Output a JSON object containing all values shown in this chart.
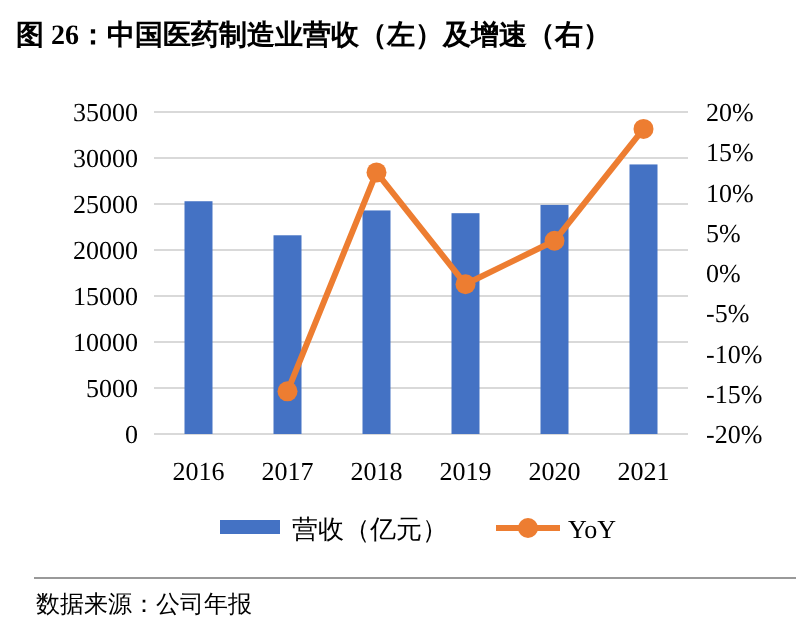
{
  "chart_data": {
    "type": "bar",
    "title": "图 26：中国医药制造业营收（左）及增速（右）",
    "categories": [
      "2016",
      "2017",
      "2018",
      "2019",
      "2020",
      "2021"
    ],
    "series": [
      {
        "name": "营收（亿元）",
        "color": "#4472c4",
        "values": [
          25300,
          21600,
          24300,
          24000,
          24900,
          29300
        ]
      },
      {
        "name": "YoY",
        "type": "line",
        "axis": "y2",
        "color": "#ed7d31",
        "marker": "circle",
        "values": [
          null,
          -14.7,
          12.5,
          -1.4,
          4.0,
          17.9
        ]
      }
    ],
    "ylim": [
      0,
      35000
    ],
    "yticks": [
      0,
      5000,
      10000,
      15000,
      20000,
      25000,
      30000,
      35000
    ],
    "y2lim": [
      -20,
      20
    ],
    "y2ticks": [
      {
        "value": -20,
        "label": "-20%"
      },
      {
        "value": -15,
        "label": "-15%"
      },
      {
        "value": -10,
        "label": "-10%"
      },
      {
        "value": -5,
        "label": "-5%"
      },
      {
        "value": 0,
        "label": "0%"
      },
      {
        "value": 5,
        "label": "5%"
      },
      {
        "value": 10,
        "label": "10%"
      },
      {
        "value": 15,
        "label": "15%"
      },
      {
        "value": 20,
        "label": "20%"
      }
    ],
    "grid": "y",
    "legend": "bottom",
    "annotations": [
      "数据来源：公司年报"
    ]
  }
}
